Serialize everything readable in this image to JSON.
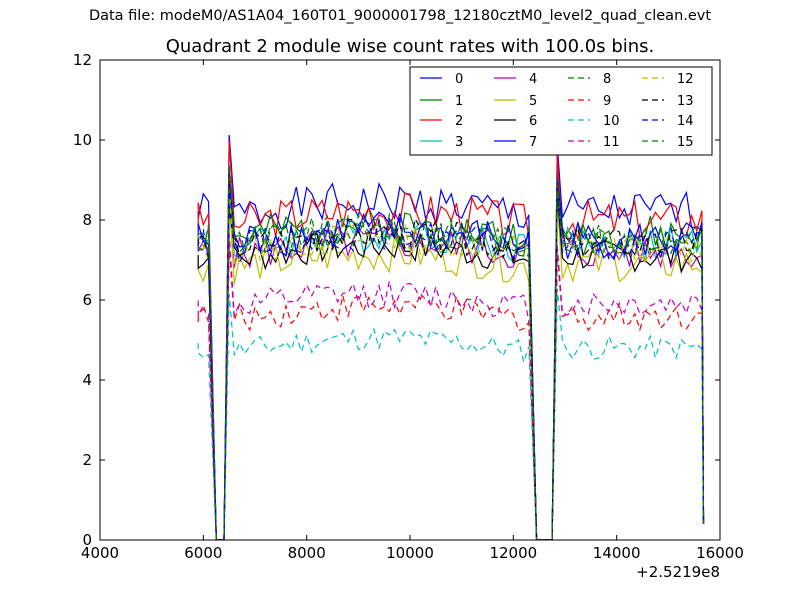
{
  "figure": {
    "suptitle": "Data file: modeM0/AS1A04_160T01_9000001798_12180cztM0_level2_quad_clean.evt"
  },
  "chart_data": {
    "type": "line",
    "title": "Quadrant 2 module wise count rates with 100.0s bins.",
    "xlabel": "",
    "ylabel": "",
    "xlim": [
      4000,
      16000
    ],
    "ylim": [
      0,
      12
    ],
    "x_offset_label": "+2.5219e8",
    "x_ticks": [
      4000,
      6000,
      8000,
      10000,
      12000,
      14000,
      16000
    ],
    "x_tick_labels": [
      "4000",
      "6000",
      "8000",
      "10000",
      "12000",
      "14000",
      "16000"
    ],
    "y_ticks": [
      0,
      2,
      4,
      6,
      8,
      10,
      12
    ],
    "y_tick_labels": [
      "0",
      "2",
      "4",
      "6",
      "8",
      "10",
      "12"
    ],
    "grid": false,
    "legend_position": "top-right",
    "legend_columns": 4,
    "segments": [
      {
        "start": 5900,
        "end": 6150,
        "edge_start": 0,
        "edge_end": 1
      },
      {
        "start": 6500,
        "end": 12350,
        "edge_start": 1,
        "edge_end": 1
      },
      {
        "start": 12850,
        "end": 15650,
        "edge_start": 1,
        "edge_end": 0.05
      }
    ],
    "series": [
      {
        "name": "0",
        "color": "#0000ff",
        "dash": "solid",
        "base": 8.2,
        "amp": 0.5,
        "seed": 1
      },
      {
        "name": "1",
        "color": "#008000",
        "dash": "solid",
        "base": 7.6,
        "amp": 0.5,
        "seed": 2
      },
      {
        "name": "2",
        "color": "#ff0000",
        "dash": "solid",
        "base": 8.0,
        "amp": 0.5,
        "seed": 3
      },
      {
        "name": "3",
        "color": "#00bfbf",
        "dash": "solid",
        "base": 7.4,
        "amp": 0.45,
        "seed": 4
      },
      {
        "name": "4",
        "color": "#bf00bf",
        "dash": "solid",
        "base": 7.2,
        "amp": 0.45,
        "seed": 5
      },
      {
        "name": "5",
        "color": "#bfbf00",
        "dash": "solid",
        "base": 6.9,
        "amp": 0.45,
        "seed": 6
      },
      {
        "name": "6",
        "color": "#000000",
        "dash": "solid",
        "base": 7.1,
        "amp": 0.4,
        "seed": 7
      },
      {
        "name": "7",
        "color": "#0000ff",
        "dash": "solid",
        "base": 7.5,
        "amp": 0.5,
        "seed": 8
      },
      {
        "name": "8",
        "color": "#008000",
        "dash": "dashed",
        "base": 7.5,
        "amp": 0.4,
        "seed": 9
      },
      {
        "name": "9",
        "color": "#ff0000",
        "dash": "dashed",
        "base": 5.6,
        "amp": 0.35,
        "seed": 10
      },
      {
        "name": "10",
        "color": "#00bfbf",
        "dash": "dashed",
        "base": 4.8,
        "amp": 0.3,
        "seed": 11
      },
      {
        "name": "11",
        "color": "#bf00bf",
        "dash": "dashed",
        "base": 5.9,
        "amp": 0.35,
        "seed": 12
      },
      {
        "name": "12",
        "color": "#bfbf00",
        "dash": "dashed",
        "base": 7.3,
        "amp": 0.4,
        "seed": 13
      },
      {
        "name": "13",
        "color": "#000000",
        "dash": "dashed",
        "base": 7.4,
        "amp": 0.4,
        "seed": 14
      },
      {
        "name": "14",
        "color": "#0000ff",
        "dash": "dashed",
        "base": 7.4,
        "amp": 0.4,
        "seed": 15
      },
      {
        "name": "15",
        "color": "#008000",
        "dash": "dashed",
        "base": 7.5,
        "amp": 0.4,
        "seed": 16
      }
    ]
  }
}
